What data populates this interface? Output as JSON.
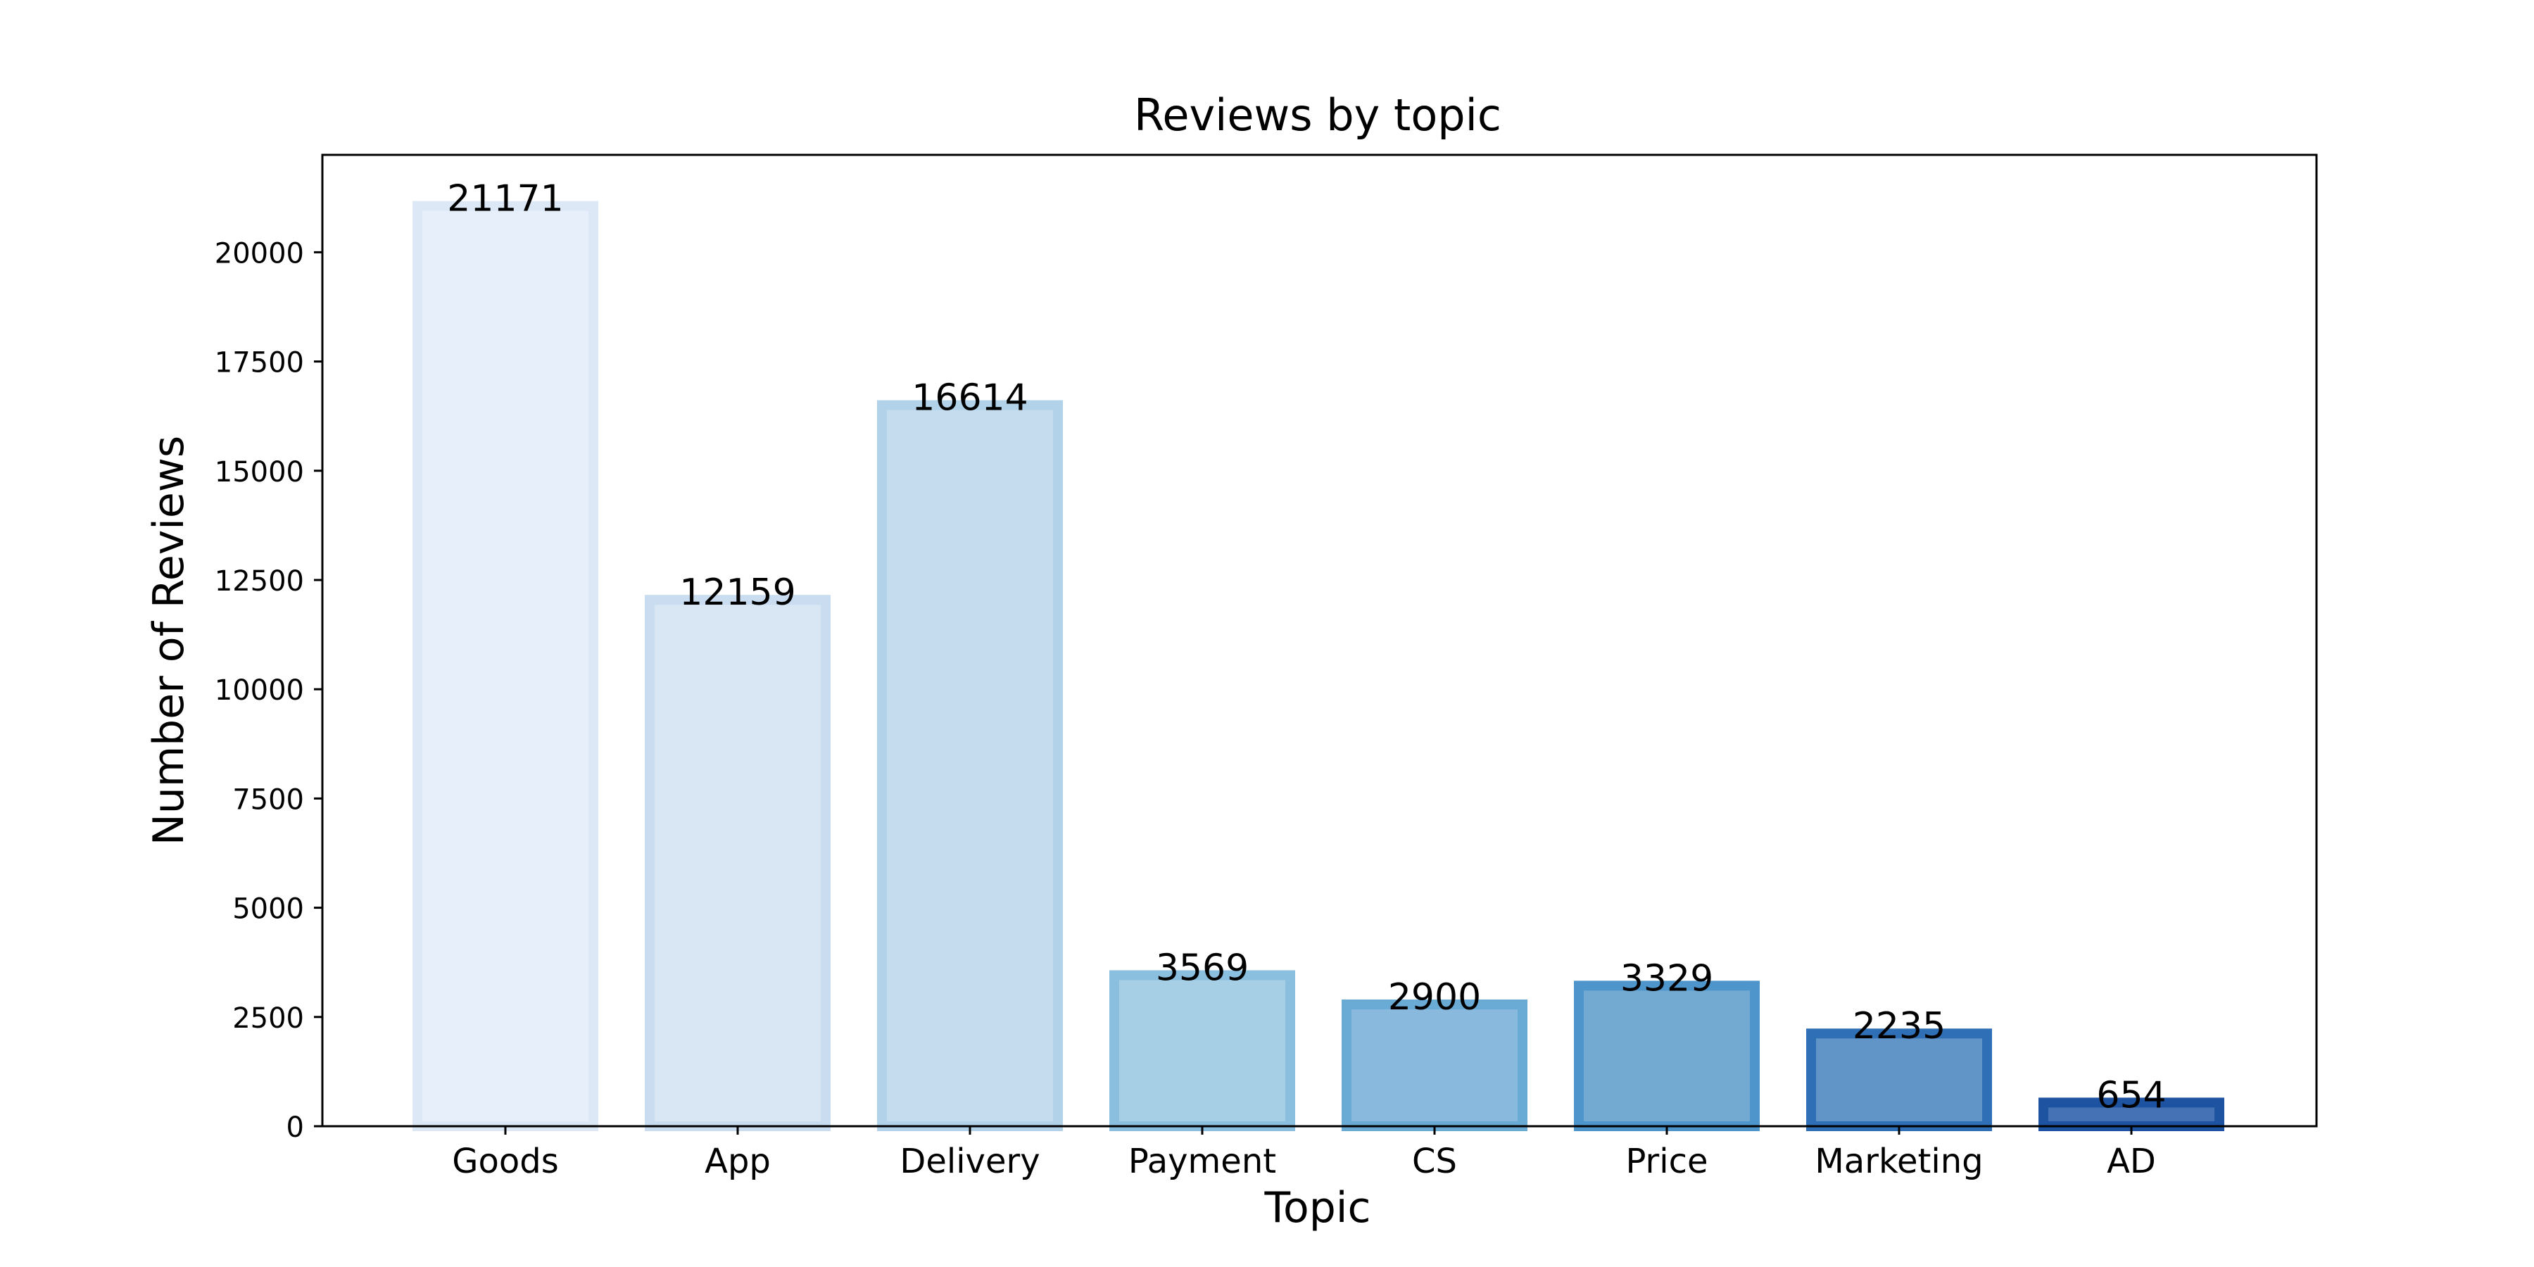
{
  "chart_data": {
    "type": "bar",
    "title": "Reviews by topic",
    "xlabel": "Topic",
    "ylabel": "Number of Reviews",
    "categories": [
      "Goods",
      "App",
      "Delivery",
      "Payment",
      "CS",
      "Price",
      "Marketing",
      "AD"
    ],
    "values": [
      21171,
      12159,
      16614,
      3569,
      2900,
      3329,
      2235,
      654
    ],
    "data_labels": [
      "21171",
      "12159",
      "16614",
      "3569",
      "2900",
      "3329",
      "2235",
      "654"
    ],
    "ylim": [
      0,
      22229
    ],
    "yticks": [
      0,
      2500,
      5000,
      7500,
      10000,
      12500,
      15000,
      17500,
      20000
    ],
    "ytick_labels": [
      "0",
      "2500",
      "5000",
      "7500",
      "10000",
      "12500",
      "15000",
      "17500",
      "20000"
    ],
    "grid": false,
    "legend": "none",
    "colors": {
      "fill": [
        "#e7f0fa",
        "#d9e7f5",
        "#c4dcee",
        "#a6cfe5",
        "#89badd",
        "#72aad2",
        "#6194c7",
        "#4472b5"
      ],
      "edge": [
        "#dce8f6",
        "#c9dcf0",
        "#b1d2e8",
        "#8bbfdf",
        "#6aabd6",
        "#4e95cb",
        "#2f6fb5",
        "#1d53a0"
      ]
    }
  }
}
